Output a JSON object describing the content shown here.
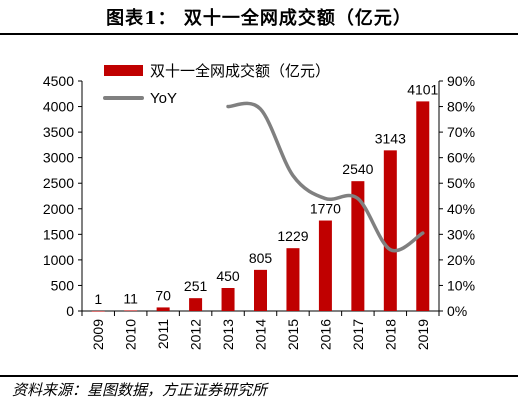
{
  "figure_title": "图表1：  双十一全网成交额（亿元）",
  "source_note": "资料来源：星图数据，方正证券研究所",
  "colors": {
    "bar": "#c00000",
    "line": "#808080",
    "axis": "#000000",
    "text": "#000000"
  },
  "chart_data": {
    "type": "bar",
    "title": "",
    "categories": [
      "2009",
      "2010",
      "2011",
      "2012",
      "2013",
      "2014",
      "2015",
      "2016",
      "2017",
      "2018",
      "2019"
    ],
    "series": [
      {
        "name": "双十一全网成交额（亿元）",
        "type": "bar",
        "axis": "left",
        "values": [
          1,
          11,
          70,
          251,
          450,
          805,
          1229,
          1770,
          2540,
          3143,
          4101
        ],
        "labels": [
          "1",
          "11",
          "70",
          "251",
          "450",
          "805",
          "1229",
          "1770",
          "2540",
          "3143",
          "4101"
        ]
      },
      {
        "name": "YoY",
        "type": "line",
        "axis": "right",
        "smooth": true,
        "values": [
          null,
          null,
          null,
          null,
          0.8,
          0.79,
          0.53,
          0.44,
          0.44,
          0.24,
          0.305
        ]
      }
    ],
    "y_left": {
      "min": 0,
      "max": 4500,
      "step": 500,
      "tick_labels": [
        "0",
        "500",
        "1000",
        "1500",
        "2000",
        "2500",
        "3000",
        "3500",
        "4000",
        "4500"
      ]
    },
    "y_right": {
      "min": 0,
      "max": 0.9,
      "step": 0.1,
      "tick_labels": [
        "0%",
        "10%",
        "20%",
        "30%",
        "40%",
        "50%",
        "60%",
        "70%",
        "80%",
        "90%"
      ]
    },
    "legend_position": "top-left",
    "grid": false,
    "x_tick_rotation": "vertical"
  }
}
